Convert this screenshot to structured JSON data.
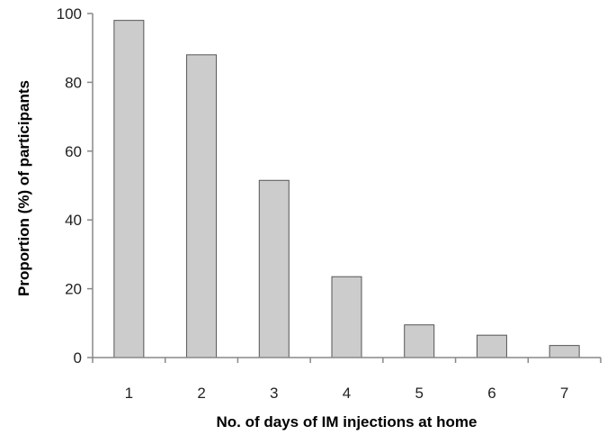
{
  "chart_data": {
    "type": "bar",
    "title": "",
    "xlabel": "No. of days of IM injections at home",
    "ylabel": "Proportion (%) of participants",
    "categories": [
      "1",
      "2",
      "3",
      "4",
      "5",
      "6",
      "7"
    ],
    "values": [
      98,
      88,
      51.5,
      23.5,
      9.5,
      6.5,
      3.5
    ],
    "ylim": [
      0,
      100
    ],
    "yticks": [
      0,
      20,
      40,
      60,
      80,
      100
    ],
    "grid": false,
    "legend": "none",
    "colors": {
      "bar_fill": "#cccccc",
      "bar_stroke": "#555555",
      "axis": "#888888"
    }
  }
}
